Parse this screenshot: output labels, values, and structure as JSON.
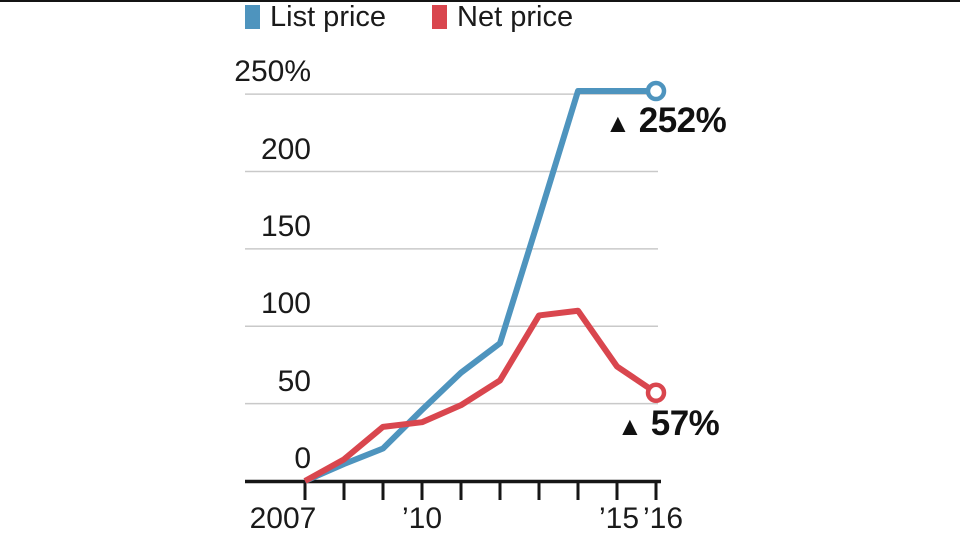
{
  "page": {
    "background": "#ffffff",
    "top_border_color": "#141414"
  },
  "legend": {
    "items": [
      {
        "label": "List price",
        "color": "#4e94be"
      },
      {
        "label": "Net price",
        "color": "#d9464e"
      }
    ]
  },
  "chart_data": {
    "type": "line",
    "x": [
      2007,
      2008,
      2009,
      2010,
      2011,
      2012,
      2013,
      2014,
      2015,
      2016
    ],
    "series": [
      {
        "name": "List price",
        "color": "#4e94be",
        "values": [
          0,
          11,
          21,
          46,
          70,
          89,
          170,
          252,
          252,
          252
        ],
        "end_marker": "open-circle",
        "end_label": "252%"
      },
      {
        "name": "Net price",
        "color": "#d9464e",
        "values": [
          0,
          14,
          35,
          38,
          49,
          65,
          107,
          110,
          74,
          57
        ],
        "end_marker": "open-circle",
        "end_label": "57%"
      }
    ],
    "y_ticks": [
      {
        "value": 250,
        "label": "250%"
      },
      {
        "value": 200,
        "label": "200"
      },
      {
        "value": 150,
        "label": "150"
      },
      {
        "value": 100,
        "label": "100"
      },
      {
        "value": 50,
        "label": "50"
      },
      {
        "value": 0,
        "label": "0"
      }
    ],
    "x_tick_labels": [
      {
        "year": 2007,
        "label": "2007",
        "dx": -22
      },
      {
        "year": 2010,
        "label": "’10",
        "dx": 0
      },
      {
        "year": 2015,
        "label": "’15",
        "dx": 2
      },
      {
        "year": 2016,
        "label": "’16",
        "dx": 7
      }
    ],
    "ylim": [
      0,
      250
    ],
    "xlim": [
      2007,
      2016
    ],
    "grid": true,
    "legend_position": "top",
    "annotations": [
      {
        "marker": "▲",
        "text": "252%",
        "series": "List price"
      },
      {
        "marker": "▲",
        "text": "57%",
        "series": "Net price"
      }
    ],
    "colors": {
      "grid": "#c9c9c9",
      "axis": "#161616",
      "text": "#1a1a1a"
    }
  }
}
